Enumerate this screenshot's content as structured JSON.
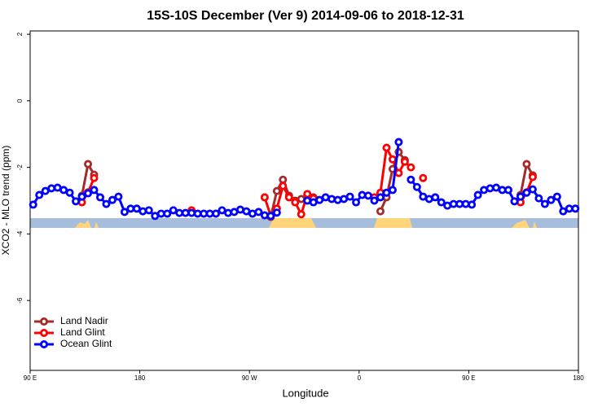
{
  "chart_data": {
    "type": "line",
    "title": "15S-10S December (Ver 9)   2014-09-06 to 2018-12-31",
    "x_label": "Longitude",
    "y_label": "XCO2 - MLO trend (ppm)",
    "xlim": [
      90,
      540
    ],
    "xticks": [
      {
        "value": 90,
        "label": "90 E"
      },
      {
        "value": 180,
        "label": "180"
      },
      {
        "value": 270,
        "label": "90 W"
      },
      {
        "value": 360,
        "label": "0"
      },
      {
        "value": 450,
        "label": "90 E"
      },
      {
        "value": 540,
        "label": "180"
      }
    ],
    "ylim": [
      -8.1,
      2.1
    ],
    "yticks": [
      2,
      0,
      -2,
      -4,
      -6
    ],
    "legend": "bottom-left",
    "x": [
      92.5,
      97.5,
      102.5,
      107.5,
      112.5,
      117.5,
      122.5,
      127.5,
      132.5,
      137.5,
      142.5,
      147.5,
      152.5,
      157.5,
      162.5,
      167.5,
      172.5,
      177.5,
      182.5,
      187.5,
      192.5,
      197.5,
      202.5,
      207.5,
      212.5,
      217.5,
      222.5,
      227.5,
      232.5,
      237.5,
      242.5,
      247.5,
      252.5,
      257.5,
      262.5,
      267.5,
      272.5,
      277.5,
      282.5,
      287.5,
      292.5,
      297.5,
      302.5,
      307.5,
      312.5,
      317.5,
      322.5,
      327.5,
      332.5,
      337.5,
      342.5,
      347.5,
      352.5,
      357.5,
      362.5,
      367.5,
      372.5,
      377.5,
      382.5,
      387.5,
      392.5,
      397.5,
      402.5,
      407.5,
      412.5,
      417.5,
      422.5,
      427.5,
      432.5,
      437.5,
      442.5,
      447.5,
      452.5,
      457.5,
      462.5,
      467.5,
      472.5,
      477.5,
      482.5,
      487.5,
      492.5,
      497.5,
      502.5,
      507.5,
      512.5,
      517.5,
      522.5,
      527.5,
      532.5,
      537.5
    ],
    "series": [
      {
        "name": "Land Nadir",
        "color": "#a52a2a",
        "values": [
          null,
          null,
          null,
          null,
          null,
          null,
          null,
          null,
          -2.85,
          -1.9,
          -2.22,
          null,
          null,
          null,
          null,
          null,
          null,
          null,
          null,
          null,
          null,
          null,
          null,
          null,
          null,
          null,
          null,
          null,
          null,
          null,
          null,
          null,
          null,
          null,
          null,
          null,
          null,
          null,
          null,
          -3.49,
          -2.71,
          -2.37,
          -2.85,
          -3.0,
          -2.95,
          -2.85,
          -2.9,
          null,
          null,
          null,
          null,
          null,
          null,
          null,
          null,
          null,
          null,
          -3.32,
          -2.9,
          -2.05,
          -1.54,
          -1.78,
          null,
          null,
          null,
          null,
          null,
          null,
          null,
          null,
          null,
          null,
          null,
          null,
          null,
          null,
          null,
          null,
          null,
          null,
          -2.83,
          -1.9,
          -2.24,
          null,
          null,
          null,
          null,
          null,
          null,
          null
        ]
      },
      {
        "name": "Land Glint",
        "color": "#ff0000",
        "values": [
          null,
          null,
          null,
          null,
          null,
          null,
          null,
          null,
          -3.05,
          -2.75,
          -2.32,
          null,
          null,
          null,
          null,
          null,
          null,
          null,
          null,
          null,
          null,
          null,
          null,
          null,
          null,
          null,
          -3.29,
          null,
          null,
          null,
          null,
          null,
          null,
          null,
          null,
          null,
          null,
          null,
          -2.9,
          -3.46,
          -3.24,
          -2.56,
          -2.9,
          -3.05,
          -3.41,
          -2.8,
          -2.93,
          null,
          null,
          null,
          null,
          null,
          null,
          null,
          null,
          null,
          -2.9,
          -2.76,
          -1.41,
          -1.76,
          -2.17,
          -1.83,
          -2.0,
          null,
          -2.32,
          null,
          null,
          null,
          null,
          null,
          null,
          null,
          null,
          null,
          null,
          null,
          null,
          null,
          null,
          null,
          -3.05,
          -2.75,
          -2.29,
          null,
          null,
          null,
          null,
          null,
          null,
          null
        ]
      },
      {
        "name": "Ocean Glint",
        "color": "#0000ff",
        "values": [
          -3.12,
          -2.83,
          -2.71,
          -2.63,
          -2.61,
          -2.68,
          -2.76,
          -3.02,
          -2.88,
          -2.78,
          -2.68,
          -2.9,
          -3.1,
          -2.98,
          -2.88,
          -3.34,
          -3.24,
          -3.24,
          -3.32,
          -3.29,
          -3.46,
          -3.39,
          -3.39,
          -3.29,
          -3.37,
          -3.37,
          -3.37,
          -3.39,
          -3.39,
          -3.39,
          -3.39,
          -3.29,
          -3.37,
          -3.34,
          -3.27,
          -3.32,
          -3.39,
          -3.34,
          -3.44,
          -3.46,
          -3.36,
          null,
          null,
          null,
          null,
          -3.0,
          -3.05,
          -2.98,
          -2.9,
          -2.95,
          -2.98,
          -2.95,
          -2.88,
          -3.05,
          -2.83,
          -2.85,
          -3.0,
          -2.9,
          -2.76,
          -2.68,
          -1.24,
          null,
          -2.37,
          -2.59,
          -2.88,
          -2.95,
          -2.9,
          -3.05,
          -3.15,
          -3.1,
          -3.1,
          -3.1,
          -3.12,
          -2.83,
          -2.68,
          -2.63,
          -2.61,
          -2.68,
          -2.68,
          -3.02,
          -2.88,
          -2.76,
          -2.66,
          -2.93,
          -3.1,
          -2.98,
          -2.88,
          -3.32,
          -3.24,
          -3.24
        ]
      }
    ]
  }
}
